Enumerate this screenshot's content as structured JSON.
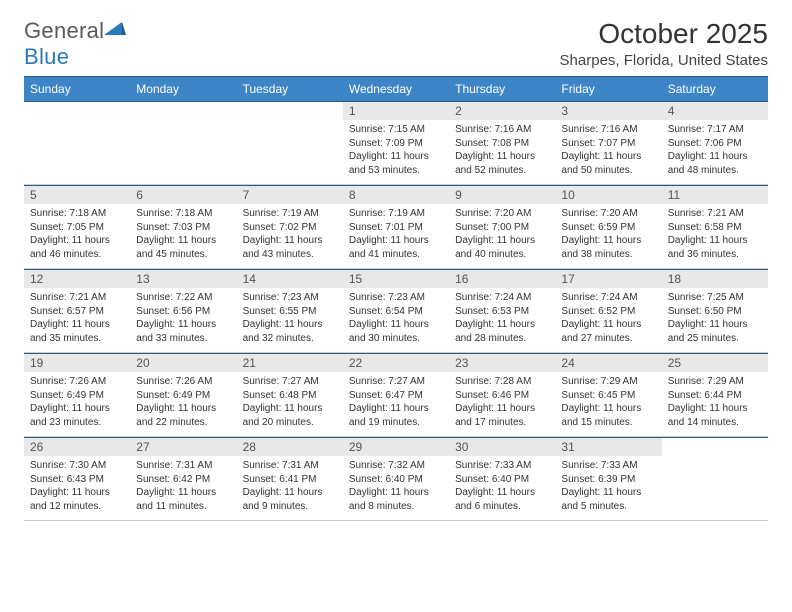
{
  "logo": {
    "word1": "General",
    "word2": "Blue"
  },
  "title": "October 2025",
  "location": "Sharpes, Florida, United States",
  "header_bg": "#3d85c6",
  "header_border": "#2a5a85",
  "daynum_bg": "#e8e8e8",
  "weekdays": [
    "Sunday",
    "Monday",
    "Tuesday",
    "Wednesday",
    "Thursday",
    "Friday",
    "Saturday"
  ],
  "weeks": [
    [
      null,
      null,
      null,
      {
        "n": "1",
        "sr": "7:15 AM",
        "ss": "7:09 PM",
        "dl": "11 hours and 53 minutes."
      },
      {
        "n": "2",
        "sr": "7:16 AM",
        "ss": "7:08 PM",
        "dl": "11 hours and 52 minutes."
      },
      {
        "n": "3",
        "sr": "7:16 AM",
        "ss": "7:07 PM",
        "dl": "11 hours and 50 minutes."
      },
      {
        "n": "4",
        "sr": "7:17 AM",
        "ss": "7:06 PM",
        "dl": "11 hours and 48 minutes."
      }
    ],
    [
      {
        "n": "5",
        "sr": "7:18 AM",
        "ss": "7:05 PM",
        "dl": "11 hours and 46 minutes."
      },
      {
        "n": "6",
        "sr": "7:18 AM",
        "ss": "7:03 PM",
        "dl": "11 hours and 45 minutes."
      },
      {
        "n": "7",
        "sr": "7:19 AM",
        "ss": "7:02 PM",
        "dl": "11 hours and 43 minutes."
      },
      {
        "n": "8",
        "sr": "7:19 AM",
        "ss": "7:01 PM",
        "dl": "11 hours and 41 minutes."
      },
      {
        "n": "9",
        "sr": "7:20 AM",
        "ss": "7:00 PM",
        "dl": "11 hours and 40 minutes."
      },
      {
        "n": "10",
        "sr": "7:20 AM",
        "ss": "6:59 PM",
        "dl": "11 hours and 38 minutes."
      },
      {
        "n": "11",
        "sr": "7:21 AM",
        "ss": "6:58 PM",
        "dl": "11 hours and 36 minutes."
      }
    ],
    [
      {
        "n": "12",
        "sr": "7:21 AM",
        "ss": "6:57 PM",
        "dl": "11 hours and 35 minutes."
      },
      {
        "n": "13",
        "sr": "7:22 AM",
        "ss": "6:56 PM",
        "dl": "11 hours and 33 minutes."
      },
      {
        "n": "14",
        "sr": "7:23 AM",
        "ss": "6:55 PM",
        "dl": "11 hours and 32 minutes."
      },
      {
        "n": "15",
        "sr": "7:23 AM",
        "ss": "6:54 PM",
        "dl": "11 hours and 30 minutes."
      },
      {
        "n": "16",
        "sr": "7:24 AM",
        "ss": "6:53 PM",
        "dl": "11 hours and 28 minutes."
      },
      {
        "n": "17",
        "sr": "7:24 AM",
        "ss": "6:52 PM",
        "dl": "11 hours and 27 minutes."
      },
      {
        "n": "18",
        "sr": "7:25 AM",
        "ss": "6:50 PM",
        "dl": "11 hours and 25 minutes."
      }
    ],
    [
      {
        "n": "19",
        "sr": "7:26 AM",
        "ss": "6:49 PM",
        "dl": "11 hours and 23 minutes."
      },
      {
        "n": "20",
        "sr": "7:26 AM",
        "ss": "6:49 PM",
        "dl": "11 hours and 22 minutes."
      },
      {
        "n": "21",
        "sr": "7:27 AM",
        "ss": "6:48 PM",
        "dl": "11 hours and 20 minutes."
      },
      {
        "n": "22",
        "sr": "7:27 AM",
        "ss": "6:47 PM",
        "dl": "11 hours and 19 minutes."
      },
      {
        "n": "23",
        "sr": "7:28 AM",
        "ss": "6:46 PM",
        "dl": "11 hours and 17 minutes."
      },
      {
        "n": "24",
        "sr": "7:29 AM",
        "ss": "6:45 PM",
        "dl": "11 hours and 15 minutes."
      },
      {
        "n": "25",
        "sr": "7:29 AM",
        "ss": "6:44 PM",
        "dl": "11 hours and 14 minutes."
      }
    ],
    [
      {
        "n": "26",
        "sr": "7:30 AM",
        "ss": "6:43 PM",
        "dl": "11 hours and 12 minutes."
      },
      {
        "n": "27",
        "sr": "7:31 AM",
        "ss": "6:42 PM",
        "dl": "11 hours and 11 minutes."
      },
      {
        "n": "28",
        "sr": "7:31 AM",
        "ss": "6:41 PM",
        "dl": "11 hours and 9 minutes."
      },
      {
        "n": "29",
        "sr": "7:32 AM",
        "ss": "6:40 PM",
        "dl": "11 hours and 8 minutes."
      },
      {
        "n": "30",
        "sr": "7:33 AM",
        "ss": "6:40 PM",
        "dl": "11 hours and 6 minutes."
      },
      {
        "n": "31",
        "sr": "7:33 AM",
        "ss": "6:39 PM",
        "dl": "11 hours and 5 minutes."
      },
      null
    ]
  ],
  "labels": {
    "sunrise": "Sunrise:",
    "sunset": "Sunset:",
    "daylight": "Daylight:"
  }
}
